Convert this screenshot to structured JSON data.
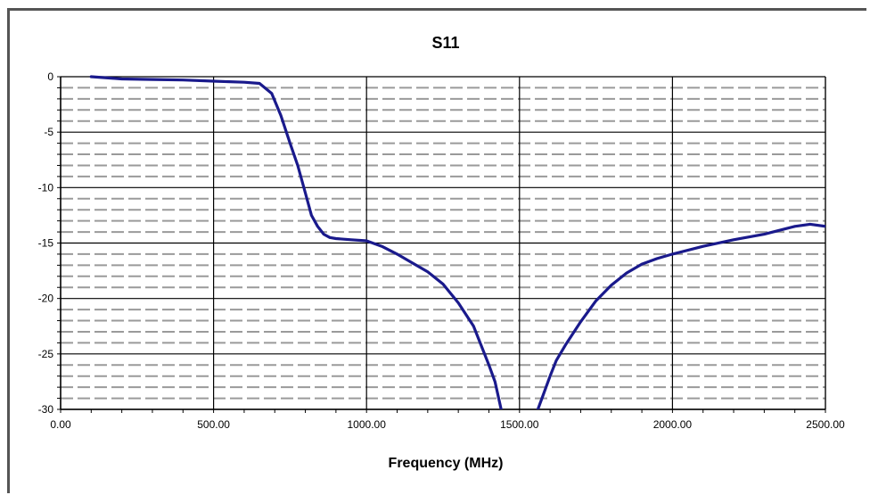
{
  "chart_data": {
    "type": "line",
    "title": "S11",
    "xlabel": "Frequency (MHz)",
    "ylabel": "",
    "xlim": [
      0,
      2500
    ],
    "ylim": [
      -30,
      0
    ],
    "x_ticks": [
      "0.00",
      "500.00",
      "1000.00",
      "1500.00",
      "2000.00",
      "2500.00"
    ],
    "y_ticks": [
      "0",
      "-5",
      "-10",
      "-15",
      "-20",
      "-25",
      "-30"
    ],
    "grid": true,
    "legend": "none",
    "line_color": "#1a1a8c",
    "series": [
      {
        "x": [
          100,
          200,
          300,
          400,
          500,
          600,
          650,
          690,
          720,
          750,
          775,
          800,
          820,
          840,
          860,
          880,
          900,
          950,
          1000,
          1050,
          1100,
          1150,
          1200,
          1250,
          1300,
          1350,
          1400,
          1420,
          1440,
          1560,
          1580,
          1600,
          1620,
          1650,
          1700,
          1750,
          1800,
          1850,
          1900,
          1950,
          2000,
          2100,
          2200,
          2300,
          2400,
          2450,
          2500
        ],
        "y": [
          0,
          -0.2,
          -0.25,
          -0.3,
          -0.4,
          -0.5,
          -0.6,
          -1.5,
          -3.5,
          -6,
          -8,
          -10.5,
          -12.5,
          -13.5,
          -14.2,
          -14.5,
          -14.6,
          -14.7,
          -14.8,
          -15.3,
          -16,
          -16.8,
          -17.6,
          -18.7,
          -20.4,
          -22.5,
          -26,
          -27.5,
          -30,
          -30,
          -28.5,
          -27,
          -25.6,
          -24.2,
          -22.1,
          -20.2,
          -18.8,
          -17.7,
          -16.9,
          -16.4,
          -16,
          -15.3,
          -14.7,
          -14.2,
          -13.5,
          -13.3,
          -13.5
        ]
      }
    ]
  }
}
